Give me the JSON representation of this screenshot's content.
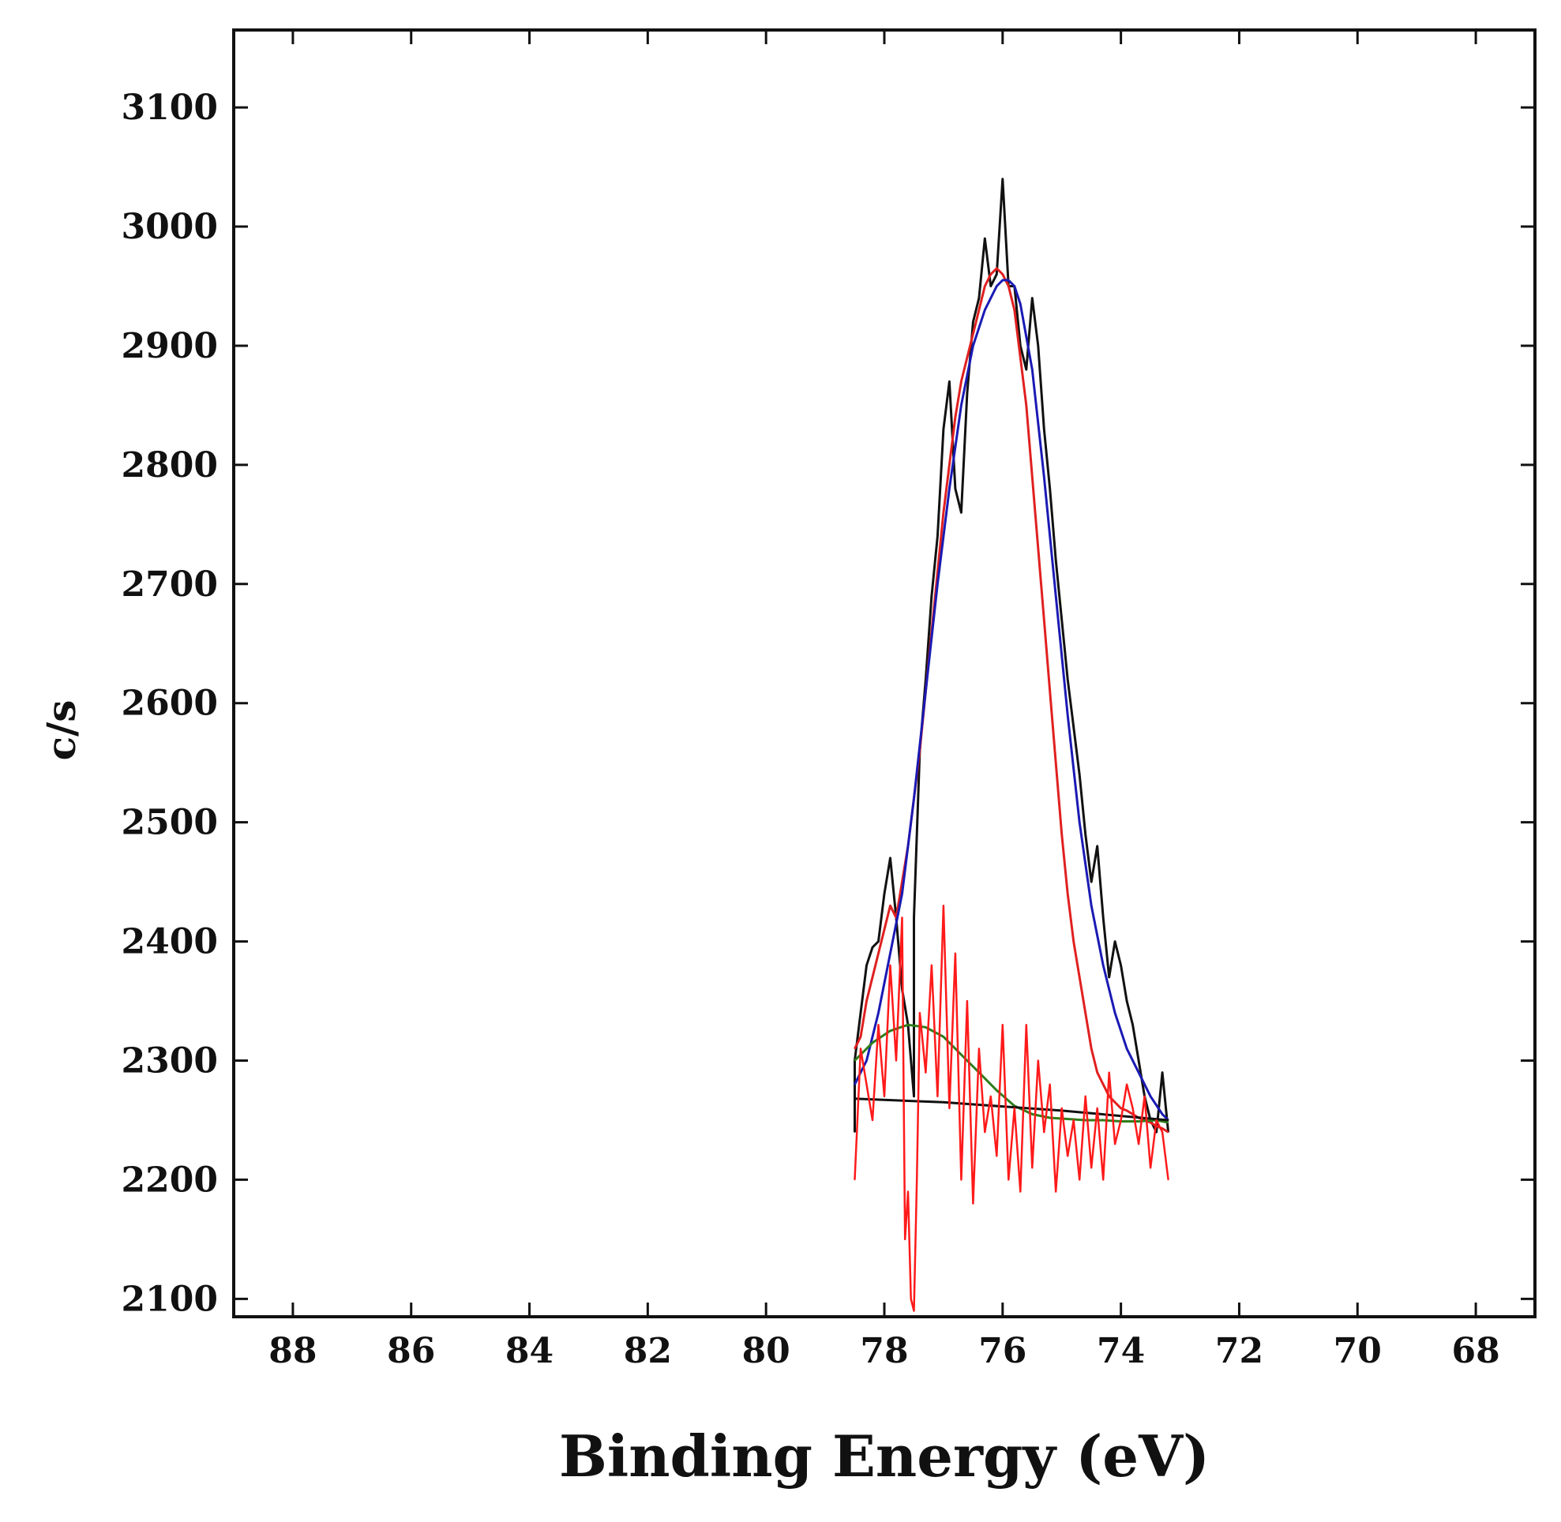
{
  "chart_data": {
    "type": "line",
    "title": "",
    "xlabel": "Binding Energy (eV)",
    "ylabel": "c/s",
    "x_reversed": true,
    "xlim": [
      89,
      67
    ],
    "ylim": [
      2085,
      3165
    ],
    "x_ticks": [
      88,
      86,
      84,
      82,
      80,
      78,
      76,
      74,
      72,
      70,
      68
    ],
    "y_ticks": [
      2100,
      2200,
      2300,
      2400,
      2500,
      2600,
      2700,
      2800,
      2900,
      3000,
      3100
    ],
    "grid": false,
    "legend": "none",
    "series": [
      {
        "color": "#111111",
        "x": [
          78.5,
          78.5,
          78.4,
          78.3,
          78.2,
          78.1,
          78.0,
          77.9,
          77.8,
          77.7,
          77.6,
          77.5,
          77.5,
          77.4,
          77.3,
          77.2,
          77.1,
          77.0,
          76.9,
          76.8,
          76.7,
          76.6,
          76.5,
          76.4,
          76.3,
          76.2,
          76.1,
          76.0,
          75.9,
          75.8,
          75.7,
          75.6,
          75.5,
          75.4,
          75.3,
          75.2,
          75.1,
          75.0,
          74.9,
          74.8,
          74.7,
          74.6,
          74.5,
          74.4,
          74.3,
          74.2,
          74.1,
          74.0,
          73.9,
          73.8,
          73.7,
          73.6,
          73.5,
          73.4,
          73.3,
          73.2
        ],
        "y": [
          2240,
          2300,
          2340,
          2380,
          2395,
          2400,
          2440,
          2470,
          2420,
          2360,
          2330,
          2270,
          2420,
          2560,
          2620,
          2690,
          2740,
          2830,
          2870,
          2780,
          2760,
          2860,
          2920,
          2940,
          2990,
          2950,
          2960,
          3040,
          2950,
          2950,
          2900,
          2880,
          2940,
          2900,
          2830,
          2780,
          2720,
          2670,
          2620,
          2580,
          2540,
          2490,
          2450,
          2480,
          2420,
          2370,
          2400,
          2380,
          2350,
          2330,
          2300,
          2270,
          2250,
          2240,
          2290,
          2240
        ]
      },
      {
        "color": "#e02020",
        "x": [
          78.5,
          78.4,
          78.3,
          78.2,
          78.1,
          78.0,
          77.9,
          77.8,
          77.7,
          77.6,
          77.5,
          77.4,
          77.3,
          77.2,
          77.1,
          77.0,
          76.9,
          76.8,
          76.7,
          76.6,
          76.5,
          76.4,
          76.3,
          76.2,
          76.1,
          76.0,
          75.9,
          75.8,
          75.7,
          75.6,
          75.5,
          75.4,
          75.3,
          75.2,
          75.1,
          75.0,
          74.9,
          74.8,
          74.7,
          74.6,
          74.5,
          74.4,
          74.3,
          74.2,
          74.1,
          74.0,
          73.9,
          73.8,
          73.7,
          73.6,
          73.5,
          73.4,
          73.3,
          73.2
        ],
        "y": [
          2310,
          2320,
          2350,
          2370,
          2390,
          2410,
          2430,
          2420,
          2450,
          2480,
          2520,
          2560,
          2610,
          2660,
          2710,
          2760,
          2800,
          2840,
          2870,
          2890,
          2910,
          2930,
          2950,
          2960,
          2965,
          2960,
          2950,
          2930,
          2890,
          2850,
          2790,
          2730,
          2670,
          2610,
          2550,
          2490,
          2440,
          2400,
          2370,
          2340,
          2310,
          2290,
          2280,
          2270,
          2265,
          2260,
          2258,
          2255,
          2252,
          2250,
          2248,
          2245,
          2243,
          2240
        ]
      },
      {
        "color": "#1a1ab4",
        "x": [
          78.5,
          78.3,
          78.1,
          77.9,
          77.7,
          77.5,
          77.3,
          77.1,
          76.9,
          76.7,
          76.5,
          76.3,
          76.1,
          76.0,
          75.9,
          75.8,
          75.7,
          75.5,
          75.3,
          75.1,
          74.9,
          74.7,
          74.5,
          74.3,
          74.1,
          73.9,
          73.7,
          73.5,
          73.3,
          73.2
        ],
        "y": [
          2280,
          2300,
          2340,
          2390,
          2440,
          2520,
          2610,
          2700,
          2780,
          2850,
          2900,
          2930,
          2950,
          2955,
          2955,
          2950,
          2935,
          2880,
          2790,
          2690,
          2590,
          2500,
          2430,
          2380,
          2340,
          2310,
          2290,
          2270,
          2255,
          2250
        ]
      },
      {
        "color": "#2e7d1a",
        "x": [
          78.5,
          78.2,
          77.9,
          77.6,
          77.3,
          77.0,
          76.7,
          76.4,
          76.1,
          75.8,
          75.5,
          75.2,
          74.9,
          74.6,
          74.3,
          74.0,
          73.7,
          73.4,
          73.2
        ],
        "y": [
          2300,
          2315,
          2325,
          2330,
          2328,
          2320,
          2305,
          2290,
          2275,
          2262,
          2255,
          2252,
          2251,
          2250,
          2250,
          2249,
          2249,
          2250,
          2248
        ]
      },
      {
        "color": "#111111",
        "x": [
          78.5,
          77.0,
          75.0,
          73.2
        ],
        "y": [
          2268,
          2265,
          2258,
          2250
        ]
      },
      {
        "color": "#ff1a1a",
        "x": [
          78.5,
          78.4,
          78.3,
          78.2,
          78.1,
          78.0,
          77.9,
          77.8,
          77.7,
          77.65,
          77.6,
          77.55,
          77.5,
          77.45,
          77.4,
          77.3,
          77.2,
          77.1,
          77.0,
          76.9,
          76.8,
          76.7,
          76.6,
          76.5,
          76.4,
          76.3,
          76.2,
          76.1,
          76.0,
          75.9,
          75.8,
          75.7,
          75.6,
          75.5,
          75.4,
          75.3,
          75.2,
          75.1,
          75.0,
          74.9,
          74.8,
          74.7,
          74.6,
          74.5,
          74.4,
          74.3,
          74.2,
          74.1,
          74.0,
          73.9,
          73.8,
          73.7,
          73.6,
          73.5,
          73.4,
          73.3,
          73.2
        ],
        "y": [
          2200,
          2310,
          2280,
          2250,
          2330,
          2270,
          2380,
          2300,
          2420,
          2150,
          2190,
          2100,
          2090,
          2200,
          2340,
          2290,
          2380,
          2270,
          2430,
          2260,
          2390,
          2200,
          2350,
          2180,
          2310,
          2240,
          2270,
          2220,
          2330,
          2200,
          2260,
          2190,
          2330,
          2210,
          2300,
          2240,
          2280,
          2190,
          2260,
          2220,
          2250,
          2200,
          2270,
          2210,
          2260,
          2200,
          2290,
          2230,
          2250,
          2280,
          2260,
          2230,
          2270,
          2210,
          2250,
          2240,
          2200
        ]
      }
    ]
  }
}
